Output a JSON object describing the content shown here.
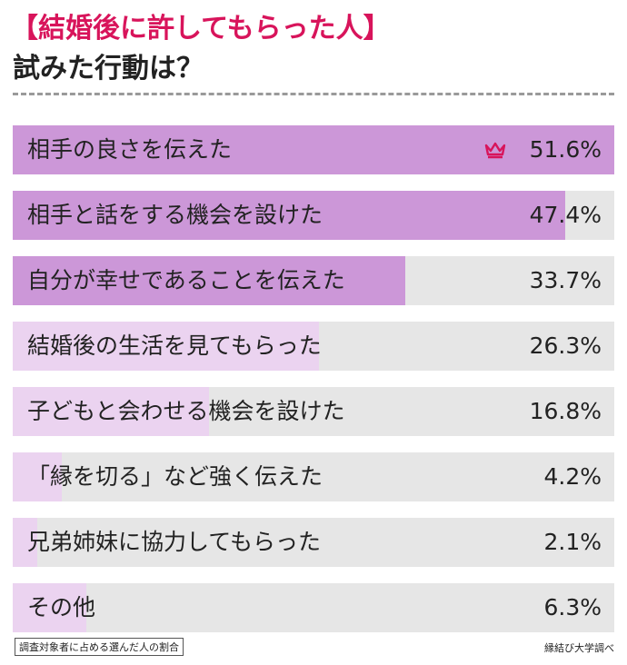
{
  "title_line1": "【結婚後に許してもらった人】",
  "title_line2": "試みた行動は？",
  "colors": {
    "title_accent": "#d8145b",
    "bar_strong": "#cc97d8",
    "bar_light": "#ebd3f0",
    "track": "#e6e6e6",
    "crown": "#d8145b"
  },
  "chart_data": {
    "type": "bar",
    "orientation": "horizontal",
    "xlim": [
      0,
      51.6
    ],
    "categories": [
      "相手の良さを伝えた",
      "相手と話をする機会を設けた",
      "自分が幸せであることを伝えた",
      "結婚後の生活を見てもらった",
      "子どもと会わせる機会を設けた",
      "「縁を切る」など強く伝えた",
      "兄弟姉妹に協力してもらった",
      "その他"
    ],
    "values": [
      51.6,
      47.4,
      33.7,
      26.3,
      16.8,
      4.2,
      2.1,
      6.3
    ],
    "value_labels": [
      "51.6%",
      "47.4%",
      "33.7%",
      "26.3%",
      "16.8%",
      "4.2%",
      "2.1%",
      "6.3%"
    ],
    "highlight_top": 3,
    "top_marker": "crown-icon"
  },
  "footnote": "調査対象者に占める選んだ人の割合",
  "source": "縁結び大学調べ"
}
